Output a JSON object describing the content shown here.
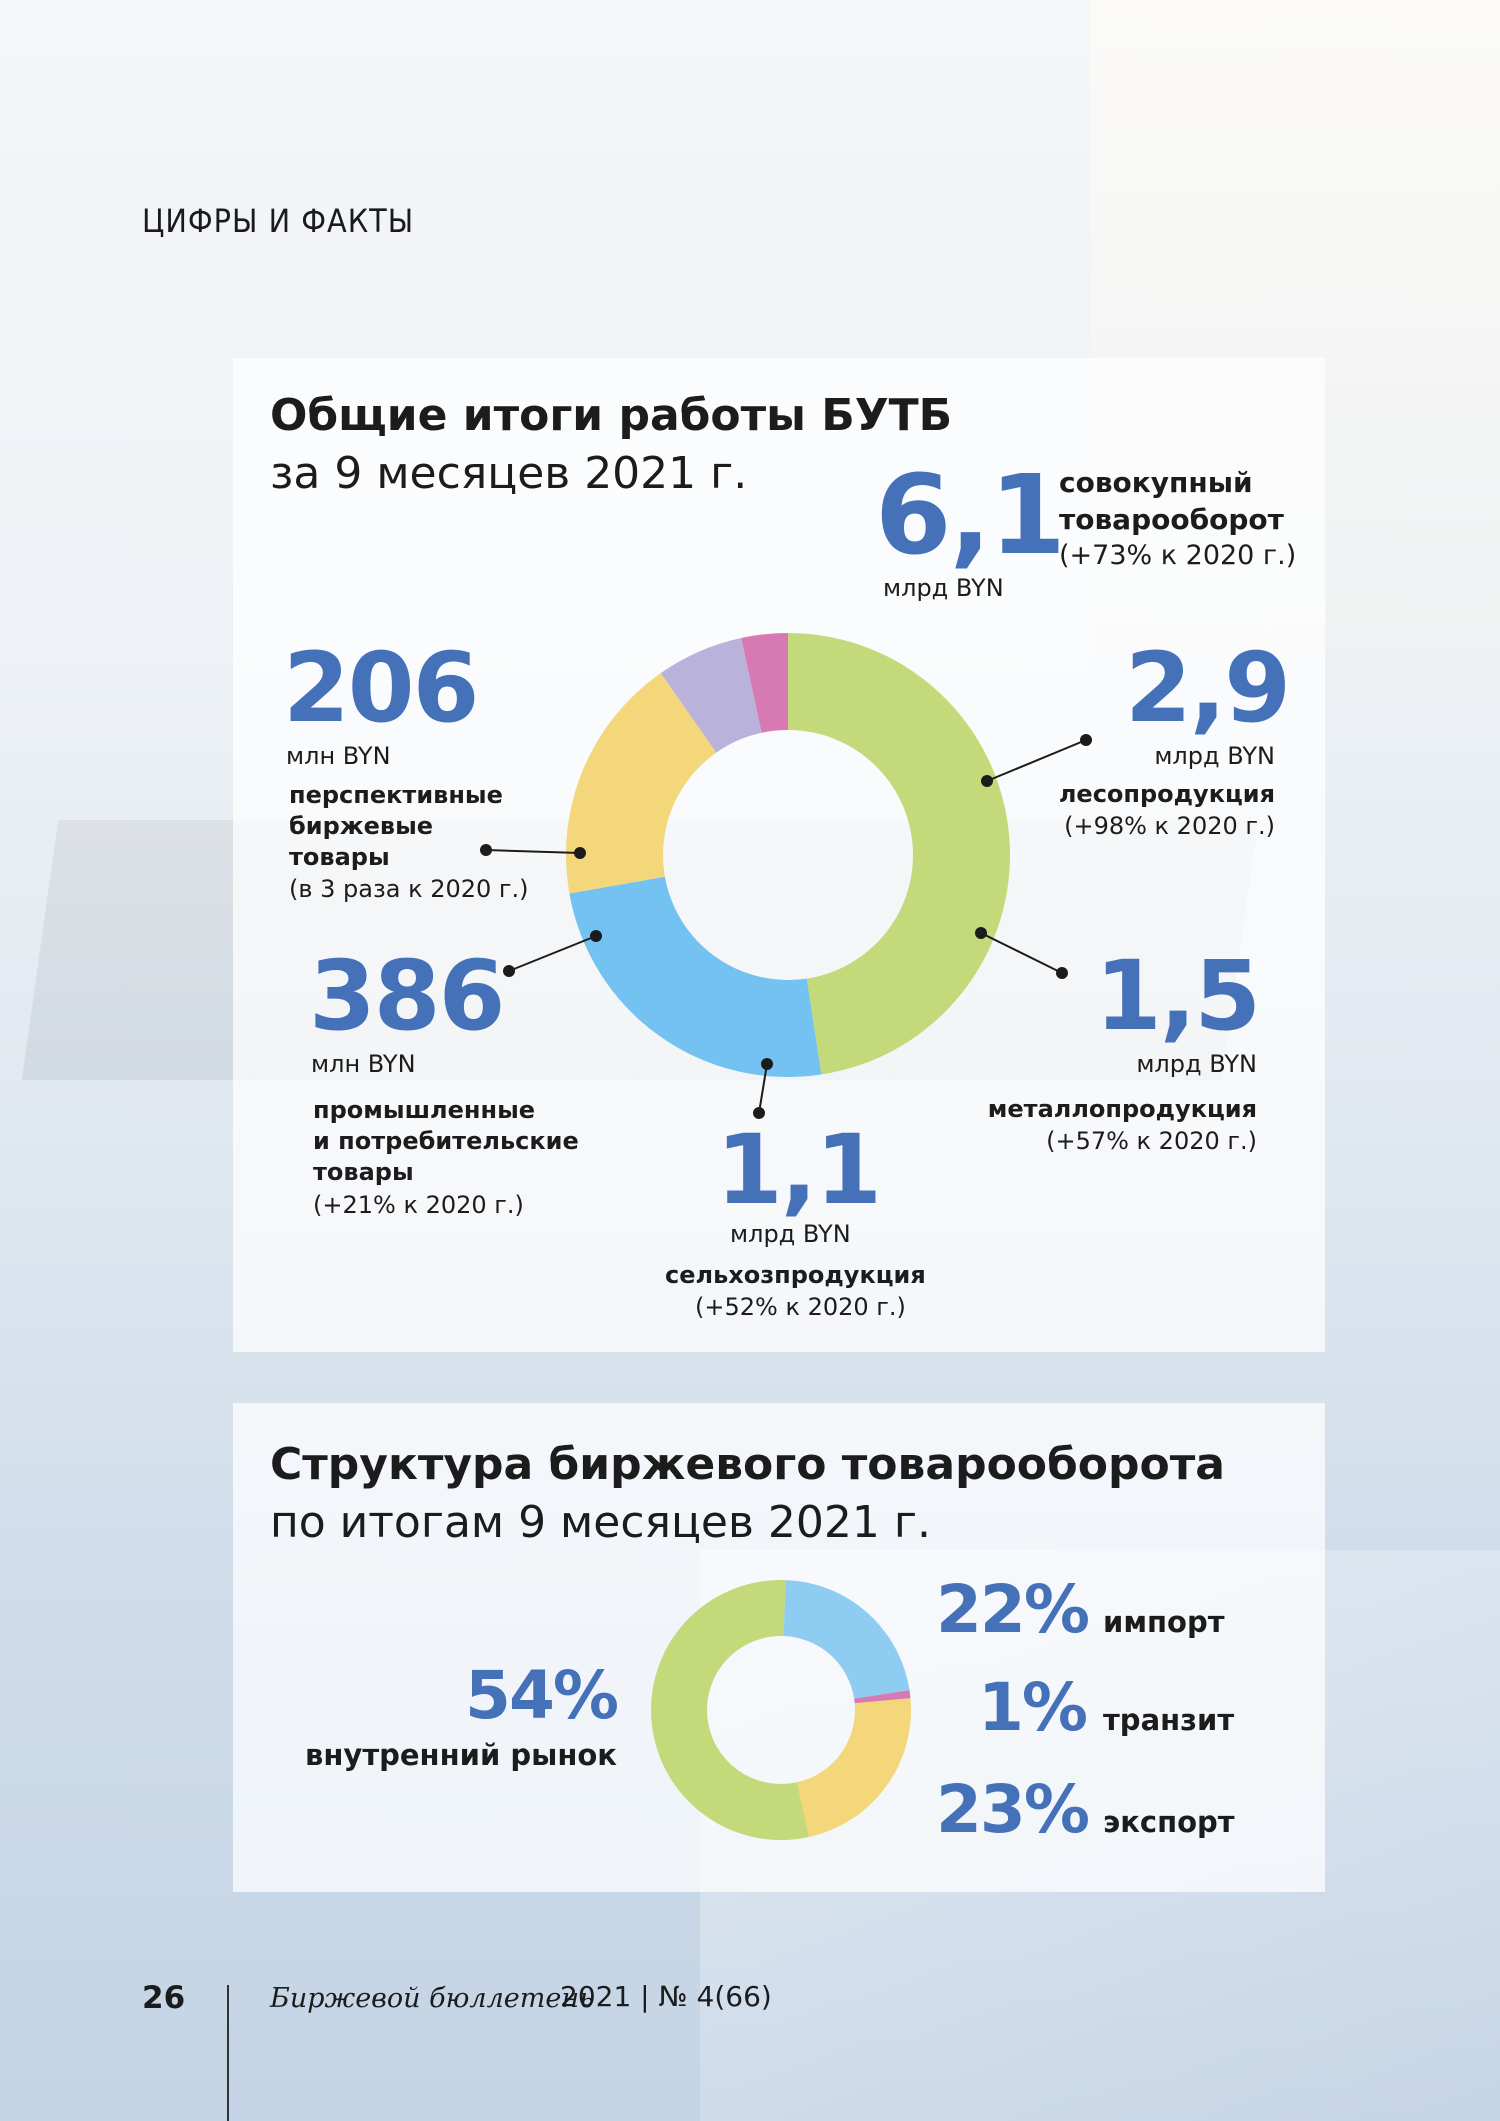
{
  "header": {
    "section": "ЦИФРЫ И ФАКТЫ"
  },
  "panel1": {
    "title": "Общие итоги работы БУТБ",
    "subtitle": "за 9 месяцев 2021 г.",
    "total": {
      "value": "6,1",
      "unit": "млрд BYN",
      "label1": "совокупный",
      "label2": "товарооборот",
      "change": "(+73% к 2020 г.)"
    },
    "items": [
      {
        "value": "2,9",
        "unit": "млрд BYN",
        "label": "лесопродукция",
        "change": "(+98% к 2020 г.)"
      },
      {
        "value": "1,5",
        "unit": "млрд BYN",
        "label": "металлопродукция",
        "change": "(+57% к 2020 г.)"
      },
      {
        "value": "1,1",
        "unit": "млрд BYN",
        "label": "сельхозпродукция",
        "change": "(+52% к 2020 г.)"
      },
      {
        "value": "386",
        "unit": "млн BYN",
        "label1": "промышленные",
        "label2": "и потребительские",
        "label3": "товары",
        "change": "(+21% к 2020 г.)"
      },
      {
        "value": "206",
        "unit": "млн BYN",
        "label1": "перспективные",
        "label2": "биржевые",
        "label3": "товары",
        "change": "(в 3 раза к 2020 г.)"
      }
    ]
  },
  "panel2": {
    "title": "Структура биржевого товарооборота",
    "subtitle": "по итогам 9 месяцев 2021 г.",
    "items": [
      {
        "pct": "54%",
        "label": "внутренний рынок"
      },
      {
        "pct": "22%",
        "label": "импорт"
      },
      {
        "pct": "1%",
        "label": "транзит"
      },
      {
        "pct": "23%",
        "label": "экспорт"
      }
    ]
  },
  "footer": {
    "page": "26",
    "title": "Биржевой бюллетень",
    "issue": "2021 | № 4(66)"
  },
  "chart_data": [
    {
      "type": "pie",
      "categories": [
        "лесопродукция",
        "металлопродукция",
        "сельхозпродукция",
        "промышленные и потребительские товары",
        "перспективные биржевые товары"
      ],
      "values": [
        2.9,
        1.5,
        1.1,
        0.386,
        0.206
      ],
      "unit": "BYN",
      "colors": [
        "#c3d97a",
        "#74c2f1",
        "#f4d77a",
        "#b9b3db",
        "#d77ab4"
      ]
    },
    {
      "type": "pie",
      "categories": [
        "импорт",
        "транзит",
        "экспорт",
        "внутренний рынок"
      ],
      "values": [
        22,
        1,
        23,
        54
      ],
      "unit": "%",
      "colors": [
        "#8fccf2",
        "#d77ab4",
        "#f4d77a",
        "#c3d97a"
      ]
    }
  ]
}
